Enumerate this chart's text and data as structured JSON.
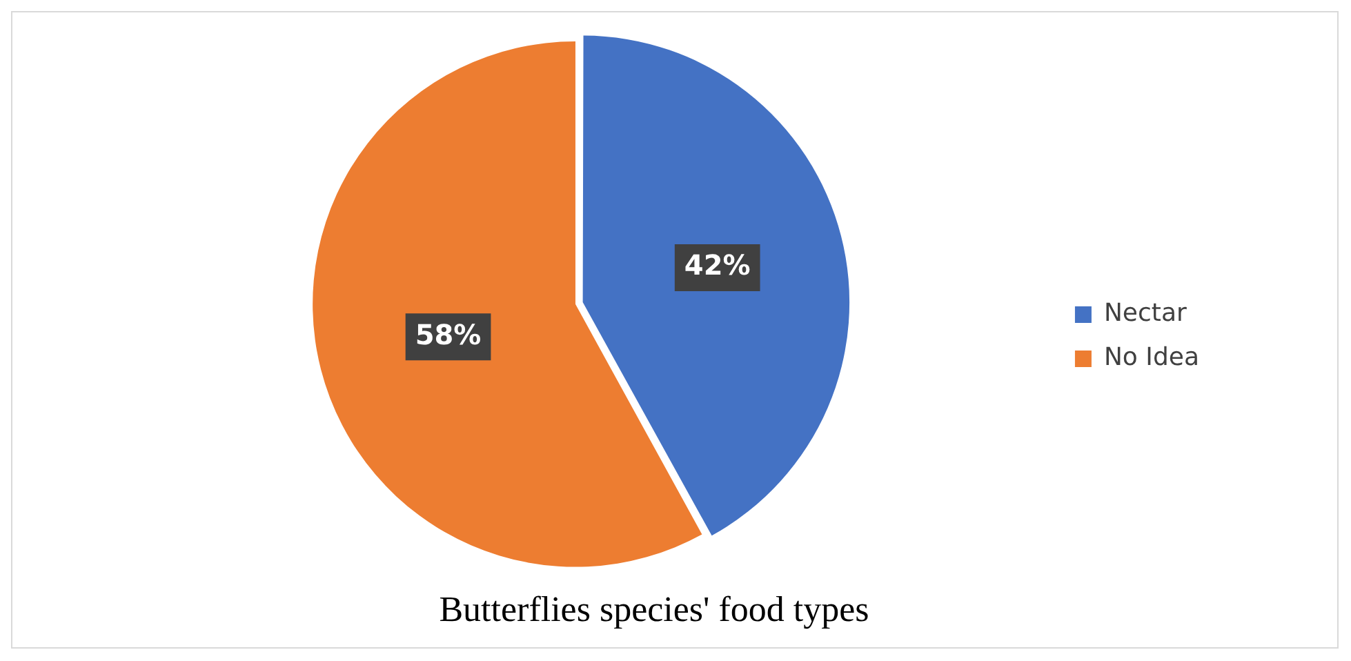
{
  "chart_data": {
    "type": "pie",
    "title": "Butterflies species' food types",
    "categories": [
      "Nectar",
      "No Idea"
    ],
    "values": [
      42,
      58
    ],
    "colors": [
      "#4472c4",
      "#ed7d31"
    ],
    "value_labels": [
      "42%",
      "58%"
    ],
    "legend": "right"
  }
}
